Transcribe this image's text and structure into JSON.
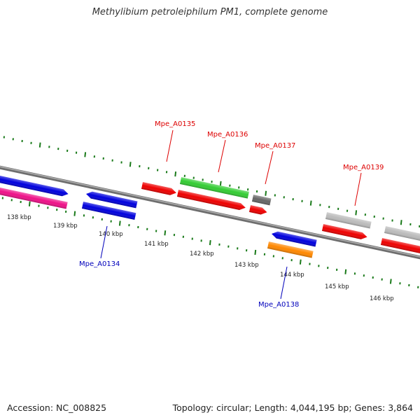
{
  "title": "Methylibium petroleiphilum PM1, complete genome",
  "footer": {
    "accession": "Accession: NC_008825",
    "summary": "Topology: circular; Length: 4,044,195 bp; Genes: 3,864"
  },
  "colors": {
    "forward_label": "#dd0000",
    "reverse_label": "#0000bb",
    "backbone": "#808080",
    "tick": "#1a7a1a"
  },
  "scale": {
    "ticks": [
      {
        "label": "138 kbp"
      },
      {
        "label": "139 kbp"
      },
      {
        "label": "140 kbp"
      },
      {
        "label": "141 kbp"
      },
      {
        "label": "142 kbp"
      },
      {
        "label": "143 kbp"
      },
      {
        "label": "144 kbp"
      },
      {
        "label": "145 kbp"
      },
      {
        "label": "146 kbp"
      }
    ]
  },
  "labels": {
    "forward": [
      {
        "text": "Mpe_A0135"
      },
      {
        "text": "Mpe_A0136"
      },
      {
        "text": "Mpe_A0137"
      },
      {
        "text": "Mpe_A0139"
      }
    ],
    "reverse": [
      {
        "text": "Mpe_A0134"
      },
      {
        "text": "Mpe_A0138"
      }
    ]
  },
  "genes": [
    {
      "color": "#0000dd"
    },
    {
      "color": "#ee1188"
    },
    {
      "color": "#0000dd"
    },
    {
      "color": "#0000dd"
    },
    {
      "color": "#ee0000"
    },
    {
      "color": "#33cc33"
    },
    {
      "color": "#ee0000"
    },
    {
      "color": "#666666"
    },
    {
      "color": "#ee0000"
    },
    {
      "color": "#0000dd"
    },
    {
      "color": "#ff8800"
    },
    {
      "color": "#bbbbbb"
    },
    {
      "color": "#ee0000"
    },
    {
      "color": "#bbbbbb"
    },
    {
      "color": "#ee0000"
    }
  ]
}
